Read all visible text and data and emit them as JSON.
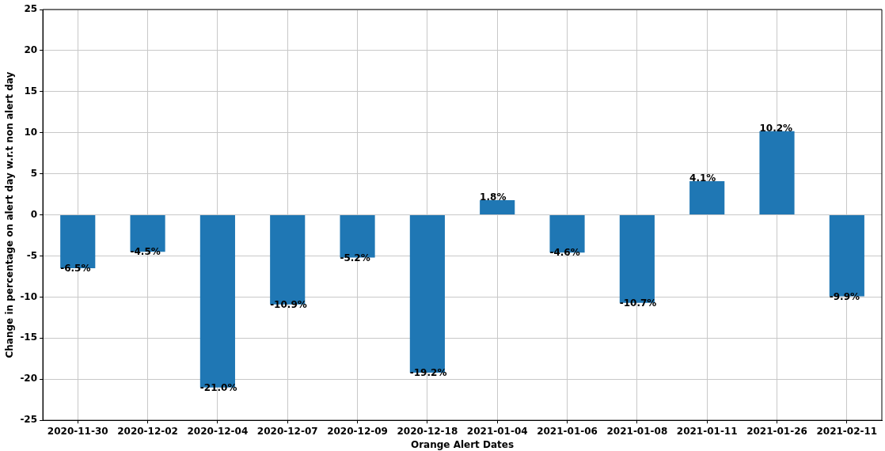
{
  "chart_data": {
    "type": "bar",
    "xlabel": "Orange Alert Dates",
    "ylabel": "Change in percentage on alert day w.r.t non alert day",
    "categories": [
      "2020-11-30",
      "2020-12-02",
      "2020-12-04",
      "2020-12-07",
      "2020-12-09",
      "2020-12-18",
      "2021-01-04",
      "2021-01-06",
      "2021-01-08",
      "2021-01-11",
      "2021-01-26",
      "2021-02-11"
    ],
    "values": [
      -6.5,
      -4.5,
      -21.0,
      -10.9,
      -5.2,
      -19.2,
      1.8,
      -4.6,
      -10.7,
      4.1,
      10.2,
      -9.9
    ],
    "value_labels": [
      "-6.5%",
      "-4.5%",
      "-21.0%",
      "-10.9%",
      "-5.2%",
      "-19.2%",
      "1.8%",
      "-4.6%",
      "-10.7%",
      "4.1%",
      "10.2%",
      "-9.9%"
    ],
    "color": "#1f77b4",
    "ylim": [
      -25,
      25
    ],
    "yticks": [
      -25,
      -20,
      -15,
      -10,
      -5,
      0,
      5,
      10,
      15,
      20,
      25
    ],
    "grid": true
  }
}
